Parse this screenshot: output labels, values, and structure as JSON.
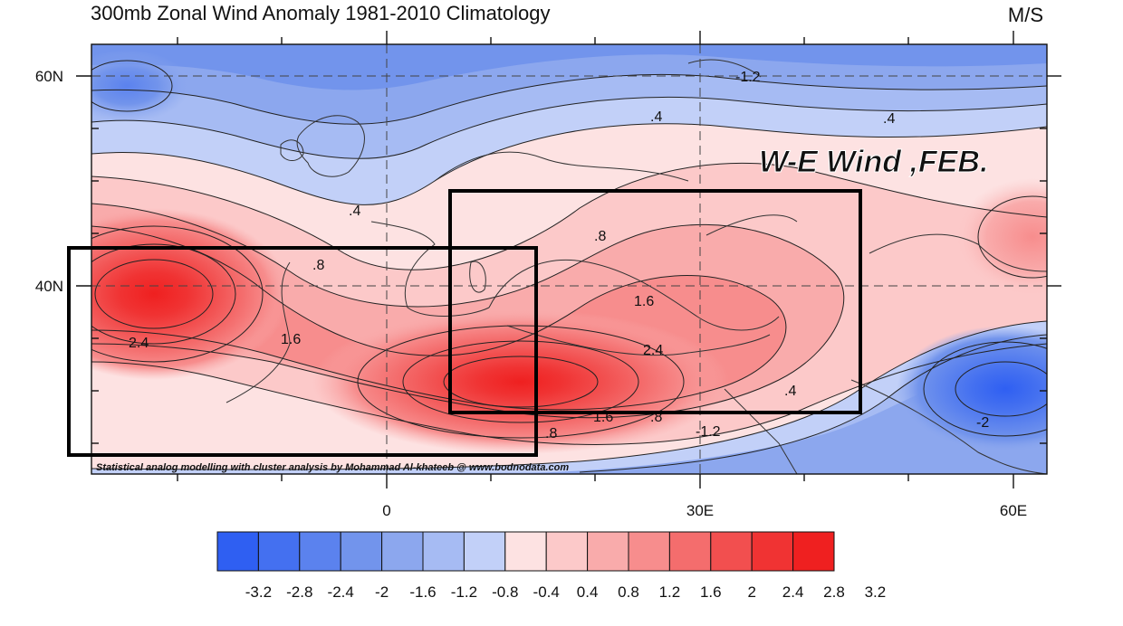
{
  "title": "300mb Zonal Wind Anomaly 1981-2010 Climatology",
  "units": "M/S",
  "annotation": "W-E Wind ,FEB.",
  "credit": "Statistical analog modelling with cluster analysis by Mohammad Al-khateeb @ www.bodnodata.com",
  "axes": {
    "x_ticks": [
      "0",
      "30E",
      "60E"
    ],
    "y_ticks": [
      "60N",
      "40N"
    ],
    "grid": "dashed lines at 40N, 60N, 0, 30E"
  },
  "contour_labels": [
    "-1.2",
    ".4",
    ".4",
    ".4",
    ".8",
    "1.6",
    "2.4",
    ".8",
    "1.6",
    "2.4",
    ".4",
    "1.6",
    ".8",
    ".8",
    "-1.2",
    "-2"
  ],
  "colorbar": {
    "ticks": [
      "-3.2",
      "-2.8",
      "-2.4",
      "-2",
      "-1.6",
      "-1.2",
      "-0.8",
      "-0.4",
      "0.4",
      "0.8",
      "1.2",
      "1.6",
      "2",
      "2.4",
      "2.8",
      "3.2"
    ],
    "colors": [
      "#2f5ff2",
      "#4470f0",
      "#5b82ee",
      "#7294ec",
      "#8ca7ee",
      "#a6bbf3",
      "#c2d0f8",
      "#fde2e2",
      "#fcc9c9",
      "#f9abab",
      "#f78d8d",
      "#f46d6d",
      "#f24f4f",
      "#f03333",
      "#ef2020"
    ]
  },
  "colors": {
    "positive_max": "#ef2020",
    "negative_max": "#2f5ff2",
    "box": "#000000"
  },
  "chart_data": {
    "type": "heatmap",
    "title": "300mb Zonal Wind Anomaly 1981-2010 Climatology",
    "xlabel": "",
    "ylabel": "",
    "units": "M/S",
    "x_ticks": [
      "0",
      "30E",
      "60E"
    ],
    "y_ticks": [
      "60N",
      "40N"
    ],
    "xlim": [
      -28,
      63
    ],
    "ylim": [
      23,
      64
    ],
    "grid": true,
    "contour_levels": [
      -3.2,
      -2.8,
      -2.4,
      -2,
      -1.6,
      -1.2,
      -0.8,
      -0.4,
      0.4,
      0.8,
      1.2,
      1.6,
      2,
      2.4,
      2.8,
      3.2
    ],
    "features": [
      {
        "kind": "max",
        "lon": -22,
        "lat": 40,
        "value": 3.0
      },
      {
        "kind": "max",
        "lon": 12,
        "lat": 30,
        "value": 3.2
      },
      {
        "kind": "max",
        "lon": 62,
        "lat": 44,
        "value": 1.2
      },
      {
        "kind": "min",
        "lon": 60,
        "lat": 30,
        "value": -2.8
      },
      {
        "kind": "min",
        "lon": -25,
        "lat": 61,
        "value": -2.0
      },
      {
        "kind": "min",
        "lon": 20,
        "lat": 62,
        "value": -1.6
      }
    ],
    "boxes": [
      {
        "lon": [
          -30,
          15
        ],
        "lat": [
          24,
          44
        ]
      },
      {
        "lon": [
          6,
          46
        ],
        "lat": [
          28,
          49
        ]
      }
    ]
  }
}
